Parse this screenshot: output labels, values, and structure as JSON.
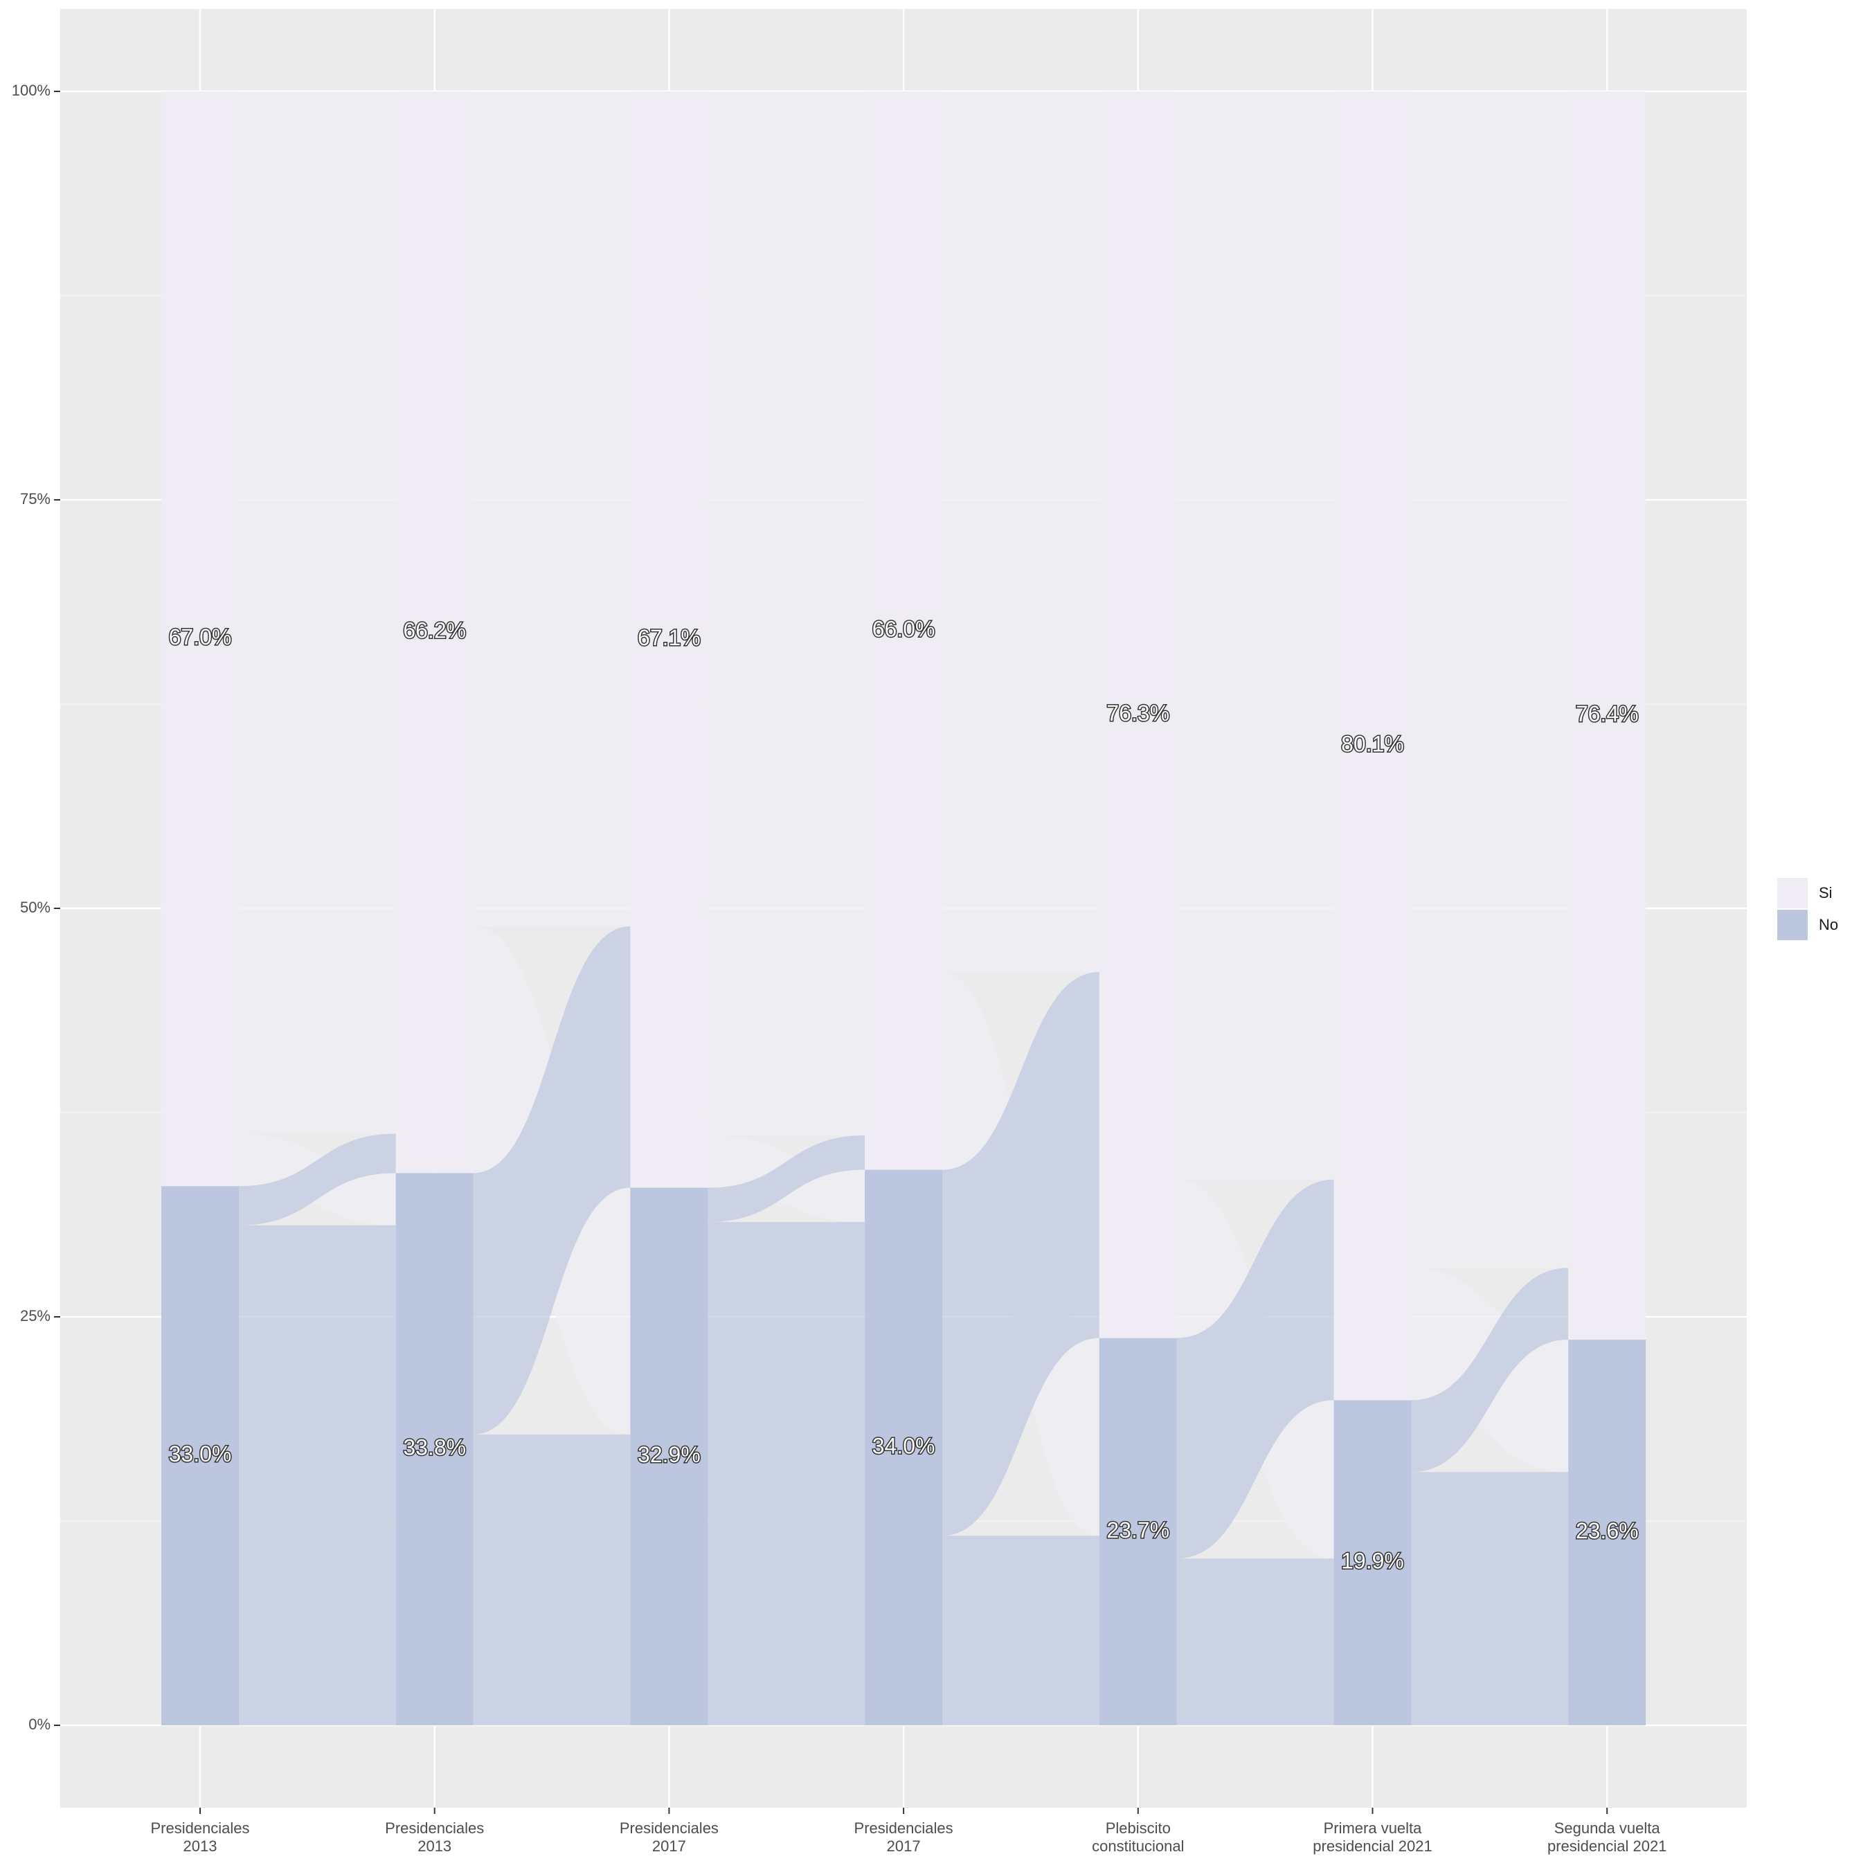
{
  "chart_data": {
    "type": "alluvial",
    "title": "",
    "xlabel": "",
    "ylabel": "",
    "ylim": [
      0,
      100
    ],
    "y_ticks": [
      "0%",
      "25%",
      "50%",
      "75%",
      "100%"
    ],
    "y_tick_values": [
      0,
      25,
      50,
      75,
      100
    ],
    "grid": true,
    "legend_position": "right",
    "categories": [
      [
        "Presidenciales",
        "2013"
      ],
      [
        "Presidenciales",
        "2013"
      ],
      [
        "Presidenciales",
        "2017"
      ],
      [
        "Presidenciales",
        "2017"
      ],
      [
        "Plebiscito",
        "constitucional"
      ],
      [
        "Primera vuelta",
        "presidencial 2021"
      ],
      [
        "Segunda vuelta",
        "presidencial 2021"
      ]
    ],
    "series": [
      {
        "name": "Si",
        "color": "#efedf3",
        "values": [
          67.0,
          66.2,
          67.1,
          66.0,
          76.3,
          80.1,
          76.4
        ],
        "labels": [
          "67.0%",
          "66.2%",
          "67.1%",
          "66.0%",
          "76.3%",
          "80.1%",
          "76.4%"
        ]
      },
      {
        "name": "No",
        "color": "#bcc7df",
        "values": [
          33.0,
          33.8,
          32.9,
          34.0,
          23.7,
          19.9,
          23.6
        ],
        "labels": [
          "33.0%",
          "33.8%",
          "32.9%",
          "34.0%",
          "23.7%",
          "19.9%",
          "23.6%"
        ]
      }
    ],
    "flows": [
      {
        "no_to_no": 30.6,
        "no_to_si": 2.4,
        "si_to_no": 3.2,
        "si_to_si": 63.8
      },
      {
        "no_to_no": 17.8,
        "no_to_si": 16.0,
        "si_to_no": 15.1,
        "si_to_si": 51.1
      },
      {
        "no_to_no": 30.8,
        "no_to_si": 2.1,
        "si_to_no": 3.2,
        "si_to_si": 63.9
      },
      {
        "no_to_no": 11.6,
        "no_to_si": 22.4,
        "si_to_no": 12.1,
        "si_to_si": 53.9
      },
      {
        "no_to_no": 10.2,
        "no_to_si": 13.5,
        "si_to_no": 9.7,
        "si_to_si": 66.6
      },
      {
        "no_to_no": 15.5,
        "no_to_si": 4.4,
        "si_to_no": 8.1,
        "si_to_si": 72.0
      }
    ]
  }
}
